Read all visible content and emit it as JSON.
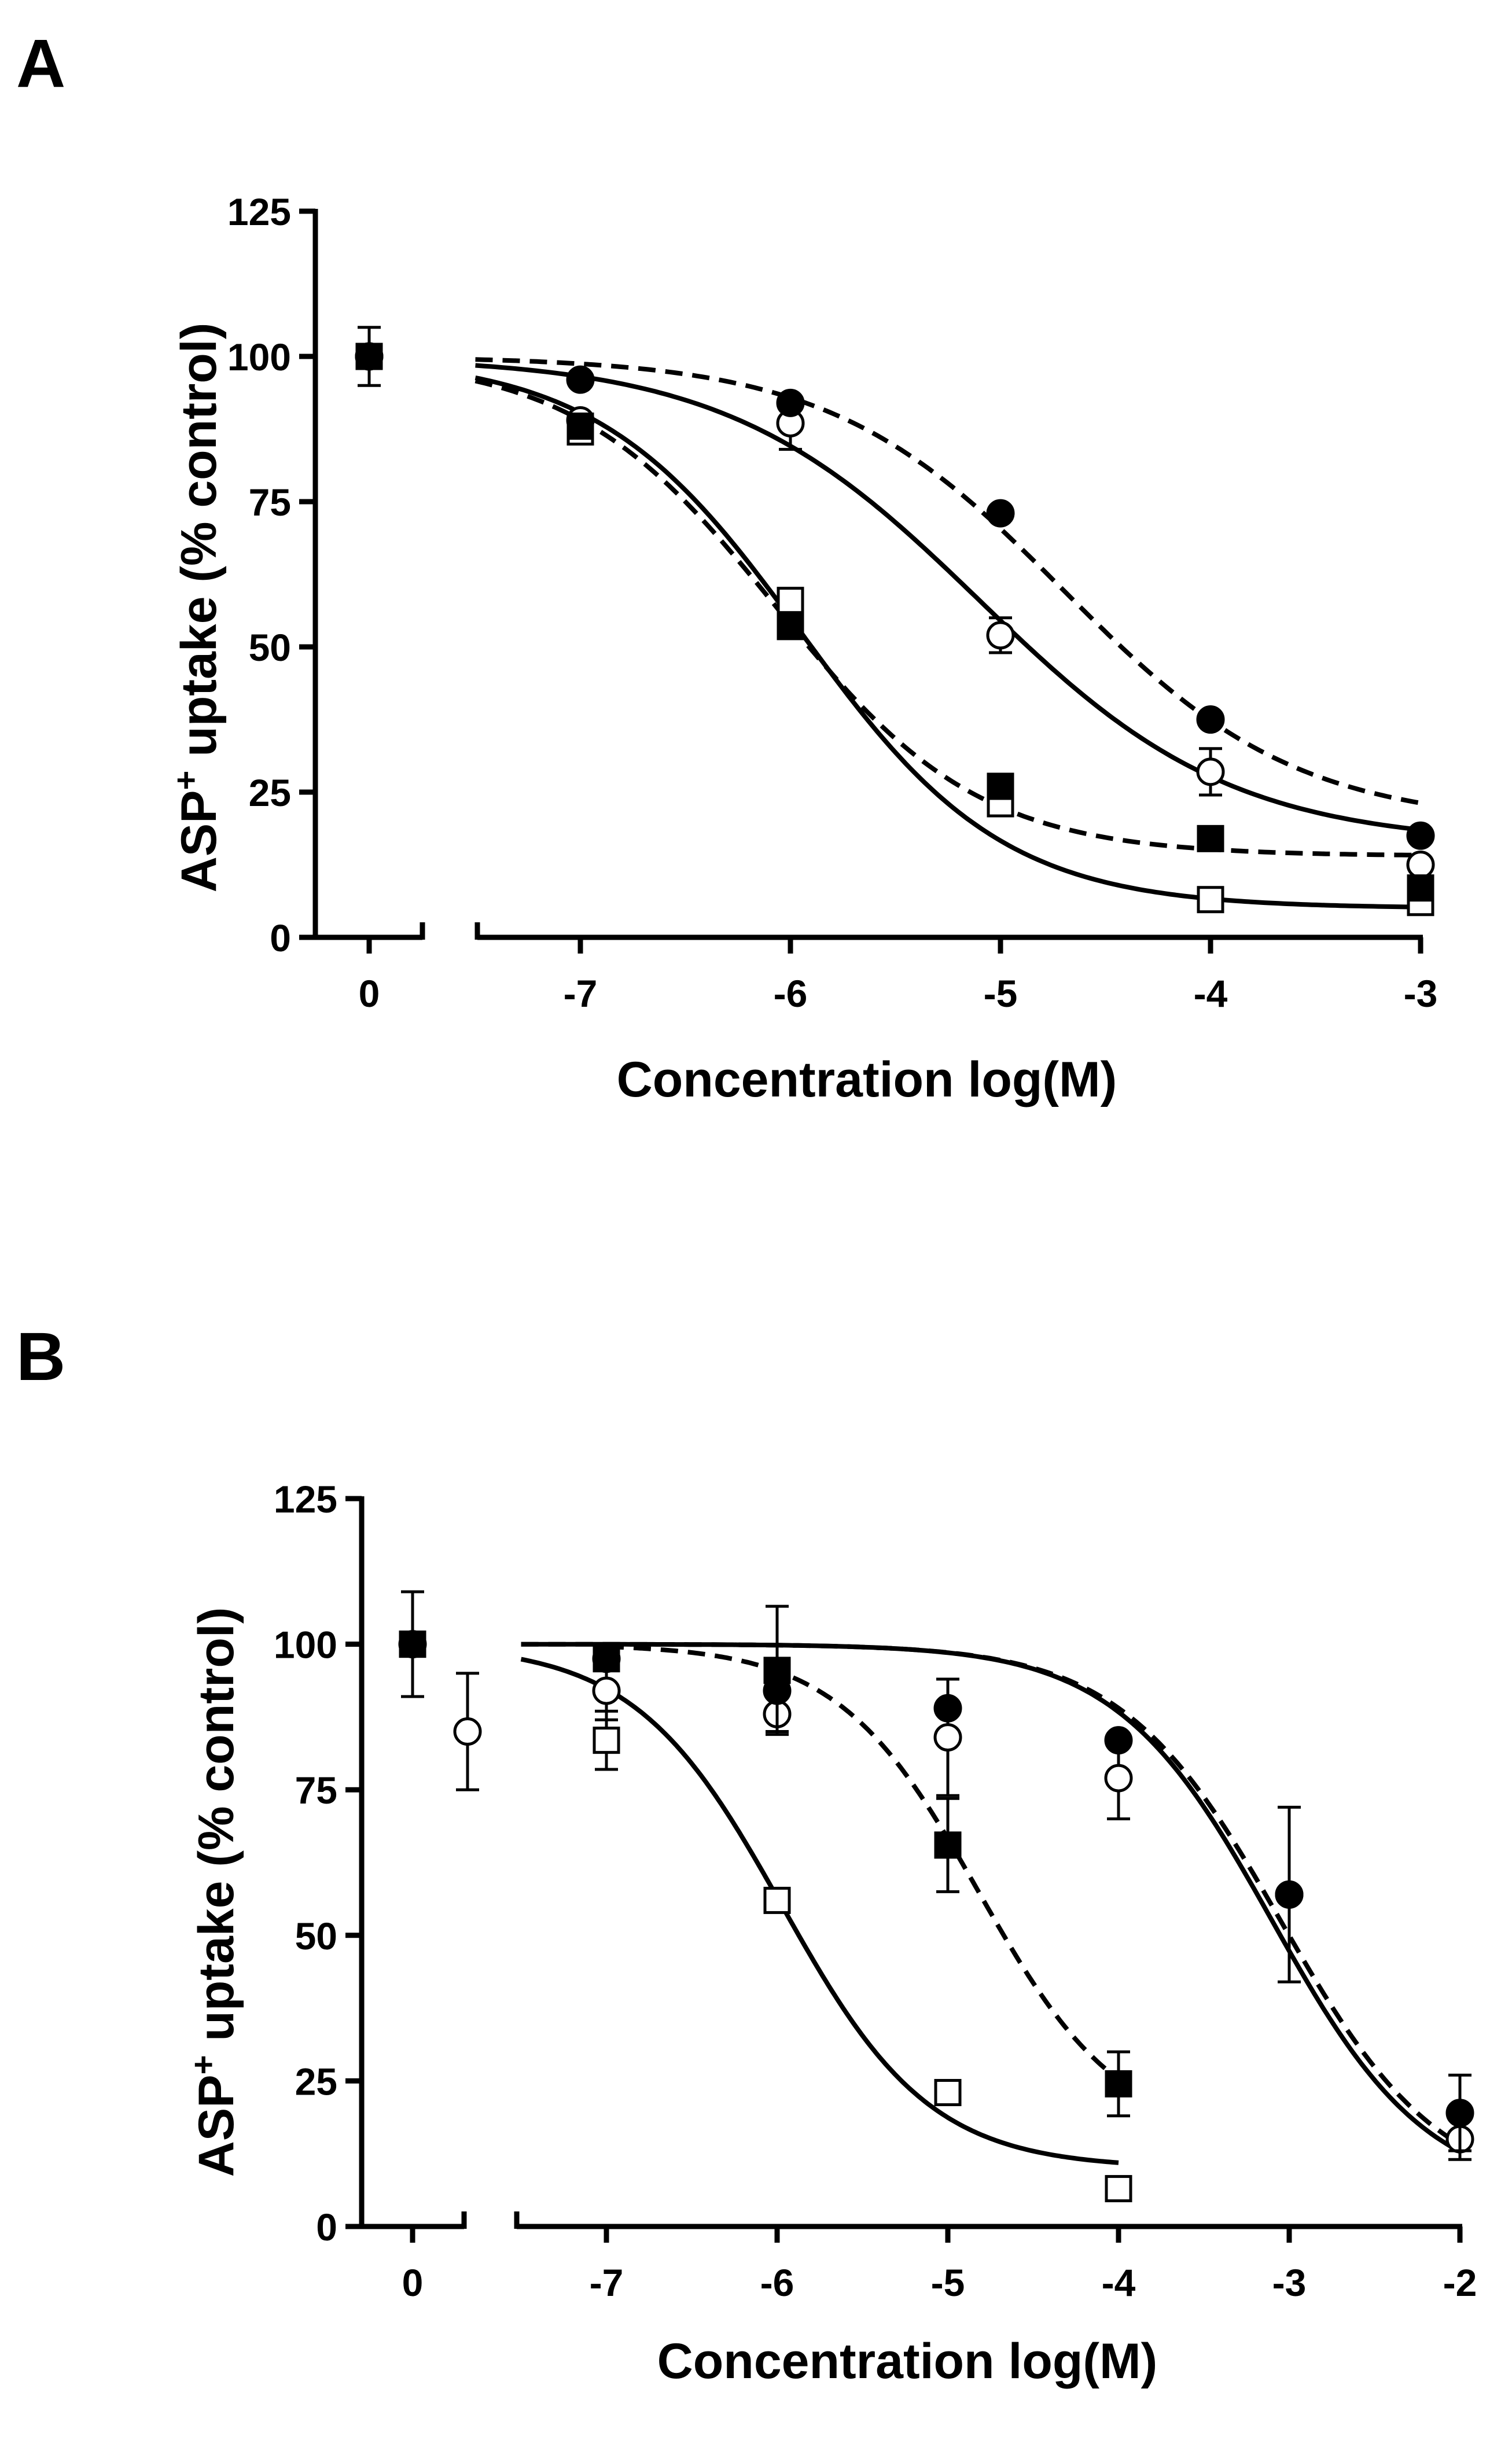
{
  "chart_data": [
    {
      "panel": "A",
      "type": "scatter",
      "xlabel": "Concentration log(M)",
      "ylabel": "ASP",
      "ylabel_superscript": "+",
      "ylabel_suffix": " uptake (% control)",
      "ylim": [
        0,
        125
      ],
      "yticks": [
        0,
        25,
        50,
        75,
        100,
        125
      ],
      "control_tick_label": "0",
      "xlim": [
        -7.5,
        -3
      ],
      "xticks": [
        -7,
        -6,
        -5,
        -4,
        -3
      ],
      "xtick_labels": [
        "-7",
        "-6",
        "-5",
        "-4",
        "-3"
      ],
      "series": [
        {
          "name": "filled circles",
          "marker": "circle",
          "filled": true,
          "line": "dashed",
          "control": {
            "y": 100,
            "err": 5
          },
          "x": [
            -7,
            -6,
            -5,
            -4,
            -3
          ],
          "y": [
            96,
            92,
            73,
            37.5,
            17.5
          ],
          "err": [
            0,
            0,
            0,
            0,
            0
          ],
          "fit": {
            "top": 100,
            "bottom": 19.5,
            "logIC50": -4.7,
            "hill": 0.78,
            "from": -7.5,
            "to": -3
          }
        },
        {
          "name": "open circles",
          "marker": "circle",
          "filled": false,
          "line": "solid",
          "control": {
            "y": 100,
            "err": 0
          },
          "x": [
            -7,
            -6,
            -5,
            -4,
            -3
          ],
          "y": [
            89,
            88.5,
            52,
            28.5,
            12.5
          ],
          "err": [
            0,
            4.5,
            3,
            4,
            0
          ],
          "fit": {
            "top": 100,
            "bottom": 16,
            "logIC50": -5.1,
            "hill": 0.72,
            "from": -7.5,
            "to": -3
          }
        },
        {
          "name": "filled squares",
          "marker": "square",
          "filled": true,
          "line": "dashed",
          "control": {
            "y": 100,
            "err": 0
          },
          "x": [
            -7,
            -6,
            -5,
            -4,
            -3
          ],
          "y": [
            88,
            53.5,
            26,
            17,
            8.5
          ],
          "err": [
            0,
            0,
            0,
            0,
            0
          ],
          "fit": {
            "top": 100,
            "bottom": 14,
            "logIC50": -6.07,
            "hill": 0.9,
            "from": -7.5,
            "to": -3
          }
        },
        {
          "name": "open squares",
          "marker": "square",
          "filled": false,
          "line": "solid",
          "control": {
            "y": 100,
            "err": 0
          },
          "x": [
            -7,
            -6,
            -5,
            -4,
            -3
          ],
          "y": [
            87,
            58,
            23,
            6.5,
            6
          ],
          "err": [
            0,
            0,
            0,
            0,
            0
          ],
          "fit": {
            "top": 100,
            "bottom": 5,
            "logIC50": -5.95,
            "hill": 0.9,
            "from": -7.5,
            "to": -3
          }
        }
      ]
    },
    {
      "panel": "B",
      "type": "scatter",
      "xlabel": "Concentration log(M)",
      "ylabel": "ASP",
      "ylabel_superscript": "+",
      "ylabel_suffix": " uptake (% control)",
      "ylim": [
        0,
        125
      ],
      "yticks": [
        0,
        25,
        50,
        75,
        100,
        125
      ],
      "control_tick_label": "0",
      "xlim": [
        -7.5,
        -2
      ],
      "xticks": [
        -7,
        -6,
        -5,
        -4,
        -3,
        -2
      ],
      "xtick_labels": [
        "-7",
        "-6",
        "-5",
        "-4",
        "-3",
        "-2"
      ],
      "series": [
        {
          "name": "filled circles",
          "marker": "circle",
          "filled": true,
          "line": "dashed",
          "control": {
            "y": 100,
            "err": 0
          },
          "x": [
            -7,
            -6,
            -5,
            -4,
            -3,
            -2
          ],
          "y": [
            97.5,
            92,
            89,
            83.5,
            57,
            19.5
          ],
          "err": [
            0,
            0,
            0,
            0,
            0,
            6.5
          ],
          "fit": {
            "top": 100,
            "bottom": 5,
            "logIC50": -3.05,
            "hill": 0.93,
            "from": -7.5,
            "to": -2
          }
        },
        {
          "name": "open circles",
          "marker": "circle",
          "filled": false,
          "line": "solid",
          "control": {
            "y": 85,
            "err": 10
          },
          "x": [
            -7,
            -6,
            -5,
            -4,
            -3,
            -2
          ],
          "y": [
            92,
            88,
            84,
            77,
            57,
            15
          ],
          "err": [
            5,
            3,
            10,
            7,
            15,
            3.5
          ],
          "fit": {
            "top": 100,
            "bottom": 5,
            "logIC50": -3.1,
            "hill": 0.95,
            "from": -7.5,
            "to": -2
          }
        },
        {
          "name": "filled squares",
          "marker": "square",
          "filled": true,
          "line": "dashed",
          "control": {
            "y": 100,
            "err": 9
          },
          "x": [
            -7,
            -6,
            -5,
            -4
          ],
          "y": [
            97.5,
            95.5,
            65.5,
            24.5
          ],
          "err": [
            0,
            11,
            8,
            5.5
          ],
          "fit": {
            "top": 100,
            "bottom": 15,
            "logIC50": -4.82,
            "hill": 1.05,
            "from": -7,
            "to": -4
          }
        },
        {
          "name": "open squares",
          "marker": "square",
          "filled": false,
          "line": "solid",
          "control": {
            "y": 100,
            "err": 0
          },
          "x": [
            -7,
            -6,
            -5,
            -4
          ],
          "y": [
            83.5,
            56,
            23,
            6.5
          ],
          "err": [
            5,
            0,
            0,
            0
          ],
          "fit": {
            "top": 100,
            "bottom": 10,
            "logIC50": -5.97,
            "hill": 1.0,
            "from": -7.5,
            "to": -4
          }
        }
      ]
    }
  ]
}
